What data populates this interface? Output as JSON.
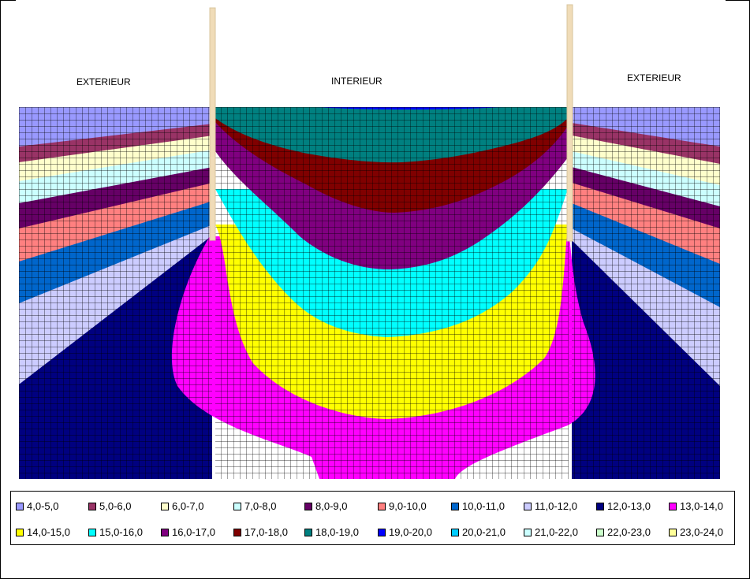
{
  "chart_data": {
    "type": "heatmap",
    "labels": {
      "left": "EXTERIEUR",
      "center": "INTERIEUR",
      "right": "EXTERIEUR"
    },
    "bands": [
      {
        "range": "4,0-5,0",
        "color": "#9999FF"
      },
      {
        "range": "5,0-6,0",
        "color": "#993366"
      },
      {
        "range": "6,0-7,0",
        "color": "#FFFFCC"
      },
      {
        "range": "7,0-8,0",
        "color": "#CCFFFF"
      },
      {
        "range": "8,0-9,0",
        "color": "#660066"
      },
      {
        "range": "9,0-10,0",
        "color": "#FF8080"
      },
      {
        "range": "10,0-11,0",
        "color": "#0066CC"
      },
      {
        "range": "11,0-12,0",
        "color": "#CCCCFF"
      },
      {
        "range": "12,0-13,0",
        "color": "#000080"
      },
      {
        "range": "13,0-14,0",
        "color": "#FF00FF"
      },
      {
        "range": "14,0-15,0",
        "color": "#FFFF00"
      },
      {
        "range": "15,0-16,0",
        "color": "#00FFFF"
      },
      {
        "range": "16,0-17,0",
        "color": "#800080"
      },
      {
        "range": "17,0-18,0",
        "color": "#800000"
      },
      {
        "range": "18,0-19,0",
        "color": "#008080"
      },
      {
        "range": "19,0-20,0",
        "color": "#0000FF"
      },
      {
        "range": "20,0-21,0",
        "color": "#00CCFF"
      },
      {
        "range": "21,0-22,0",
        "color": "#CCFFFF"
      },
      {
        "range": "22,0-23,0",
        "color": "#CCFFCC"
      },
      {
        "range": "23,0-24,0",
        "color": "#FFFF99"
      }
    ],
    "legend_position": "bottom",
    "grid": true
  }
}
